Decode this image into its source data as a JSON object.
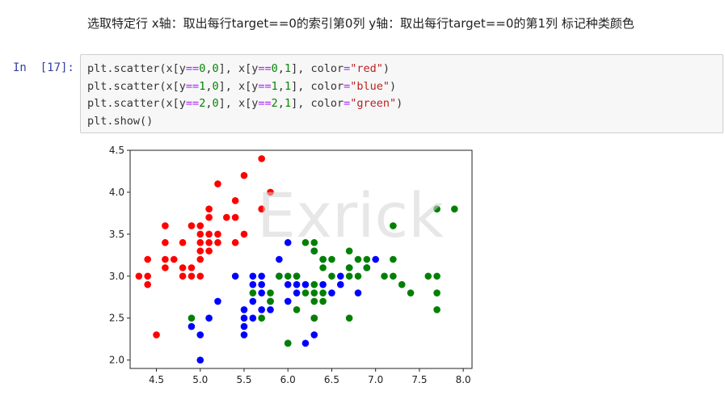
{
  "markdown_heading": "选取特定行 x轴：取出每行target==0的索引第0列 y轴：取出每行target==0的第1列 标记种类颜色",
  "cell": {
    "prompt_label": "In",
    "execution_count": "[17]:",
    "code_lines": [
      "plt.scatter(x[y==0,0], x[y==0,1], color=\"red\")",
      "plt.scatter(x[y==1,0], x[y==1,1], color=\"blue\")",
      "plt.scatter(x[y==2,0], x[y==2,1], color=\"green\")",
      "plt.show()"
    ]
  },
  "watermark_text": "Exrick",
  "chart_data": {
    "type": "scatter",
    "xlim": [
      4.2,
      8.1
    ],
    "ylim": [
      1.9,
      4.5
    ],
    "xticks": [
      "4.5",
      "5.0",
      "5.5",
      "6.0",
      "6.5",
      "7.0",
      "7.5",
      "8.0"
    ],
    "yticks": [
      "2.0",
      "2.5",
      "3.0",
      "3.5",
      "4.0",
      "4.5"
    ],
    "grid": false,
    "series": [
      {
        "color": "#ff0000",
        "points": [
          [
            4.3,
            3.0
          ],
          [
            4.4,
            2.9
          ],
          [
            4.4,
            3.0
          ],
          [
            4.4,
            3.2
          ],
          [
            4.5,
            2.3
          ],
          [
            4.6,
            3.1
          ],
          [
            4.6,
            3.2
          ],
          [
            4.6,
            3.4
          ],
          [
            4.6,
            3.6
          ],
          [
            4.7,
            3.2
          ],
          [
            4.8,
            3.0
          ],
          [
            4.8,
            3.1
          ],
          [
            4.8,
            3.4
          ],
          [
            4.9,
            3.0
          ],
          [
            4.9,
            3.1
          ],
          [
            4.9,
            3.6
          ],
          [
            5.0,
            3.0
          ],
          [
            5.0,
            3.2
          ],
          [
            5.0,
            3.3
          ],
          [
            5.0,
            3.4
          ],
          [
            5.0,
            3.5
          ],
          [
            5.0,
            3.6
          ],
          [
            5.1,
            3.3
          ],
          [
            5.1,
            3.4
          ],
          [
            5.1,
            3.5
          ],
          [
            5.1,
            3.7
          ],
          [
            5.1,
            3.8
          ],
          [
            5.2,
            3.4
          ],
          [
            5.2,
            3.5
          ],
          [
            5.2,
            4.1
          ],
          [
            5.3,
            3.7
          ],
          [
            5.4,
            3.4
          ],
          [
            5.4,
            3.7
          ],
          [
            5.4,
            3.9
          ],
          [
            5.5,
            3.5
          ],
          [
            5.5,
            4.2
          ],
          [
            5.7,
            3.8
          ],
          [
            5.7,
            4.4
          ],
          [
            5.8,
            4.0
          ]
        ]
      },
      {
        "color": "#0000ff",
        "points": [
          [
            4.9,
            2.4
          ],
          [
            5.0,
            2.0
          ],
          [
            5.0,
            2.3
          ],
          [
            5.1,
            2.5
          ],
          [
            5.2,
            2.7
          ],
          [
            5.4,
            3.0
          ],
          [
            5.5,
            2.3
          ],
          [
            5.5,
            2.4
          ],
          [
            5.5,
            2.5
          ],
          [
            5.5,
            2.6
          ],
          [
            5.6,
            2.5
          ],
          [
            5.6,
            2.7
          ],
          [
            5.6,
            2.9
          ],
          [
            5.6,
            3.0
          ],
          [
            5.7,
            2.6
          ],
          [
            5.7,
            2.8
          ],
          [
            5.7,
            2.9
          ],
          [
            5.7,
            3.0
          ],
          [
            5.8,
            2.6
          ],
          [
            5.8,
            2.7
          ],
          [
            5.9,
            3.0
          ],
          [
            5.9,
            3.2
          ],
          [
            6.0,
            2.2
          ],
          [
            6.0,
            2.7
          ],
          [
            6.0,
            2.9
          ],
          [
            6.0,
            3.4
          ],
          [
            6.1,
            2.8
          ],
          [
            6.1,
            2.9
          ],
          [
            6.1,
            3.0
          ],
          [
            6.2,
            2.2
          ],
          [
            6.2,
            2.9
          ],
          [
            6.3,
            2.3
          ],
          [
            6.3,
            2.5
          ],
          [
            6.3,
            3.3
          ],
          [
            6.4,
            2.9
          ],
          [
            6.4,
            3.2
          ],
          [
            6.5,
            2.8
          ],
          [
            6.6,
            2.9
          ],
          [
            6.6,
            3.0
          ],
          [
            6.7,
            3.1
          ],
          [
            6.8,
            2.8
          ],
          [
            6.9,
            3.1
          ],
          [
            7.0,
            3.2
          ]
        ]
      },
      {
        "color": "#008000",
        "points": [
          [
            4.9,
            2.5
          ],
          [
            5.6,
            2.8
          ],
          [
            5.7,
            2.5
          ],
          [
            5.8,
            2.7
          ],
          [
            5.8,
            2.8
          ],
          [
            5.9,
            3.0
          ],
          [
            6.0,
            2.2
          ],
          [
            6.0,
            3.0
          ],
          [
            6.1,
            2.6
          ],
          [
            6.1,
            3.0
          ],
          [
            6.2,
            2.8
          ],
          [
            6.2,
            3.4
          ],
          [
            6.3,
            2.5
          ],
          [
            6.3,
            2.7
          ],
          [
            6.3,
            2.8
          ],
          [
            6.3,
            2.9
          ],
          [
            6.3,
            3.3
          ],
          [
            6.3,
            3.4
          ],
          [
            6.4,
            2.7
          ],
          [
            6.4,
            2.8
          ],
          [
            6.4,
            3.1
          ],
          [
            6.4,
            3.2
          ],
          [
            6.5,
            3.0
          ],
          [
            6.5,
            3.2
          ],
          [
            6.7,
            2.5
          ],
          [
            6.7,
            3.0
          ],
          [
            6.7,
            3.1
          ],
          [
            6.7,
            3.3
          ],
          [
            6.8,
            3.0
          ],
          [
            6.8,
            3.2
          ],
          [
            6.9,
            3.1
          ],
          [
            6.9,
            3.2
          ],
          [
            7.1,
            3.0
          ],
          [
            7.2,
            3.0
          ],
          [
            7.2,
            3.2
          ],
          [
            7.2,
            3.6
          ],
          [
            7.3,
            2.9
          ],
          [
            7.4,
            2.8
          ],
          [
            7.6,
            3.0
          ],
          [
            7.7,
            2.6
          ],
          [
            7.7,
            2.8
          ],
          [
            7.7,
            3.0
          ],
          [
            7.7,
            3.8
          ],
          [
            7.9,
            3.8
          ]
        ]
      }
    ]
  }
}
